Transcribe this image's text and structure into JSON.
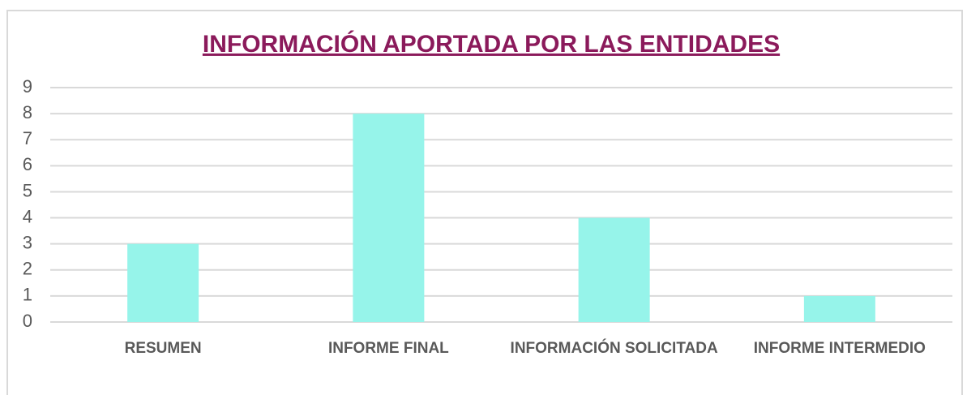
{
  "chart_data": {
    "type": "bar",
    "title": "INFORMACIÓN APORTADA POR LAS ENTIDADES",
    "categories": [
      "RESUMEN",
      "INFORME FINAL",
      "INFORMACIÓN SOLICITADA",
      "INFORME INTERMEDIO"
    ],
    "values": [
      3,
      8,
      4,
      1
    ],
    "color": "#96f4ea",
    "ylim": [
      0,
      9
    ],
    "yticks": [
      0,
      1,
      2,
      3,
      4,
      5,
      6,
      7,
      8,
      9
    ],
    "grid": true
  }
}
